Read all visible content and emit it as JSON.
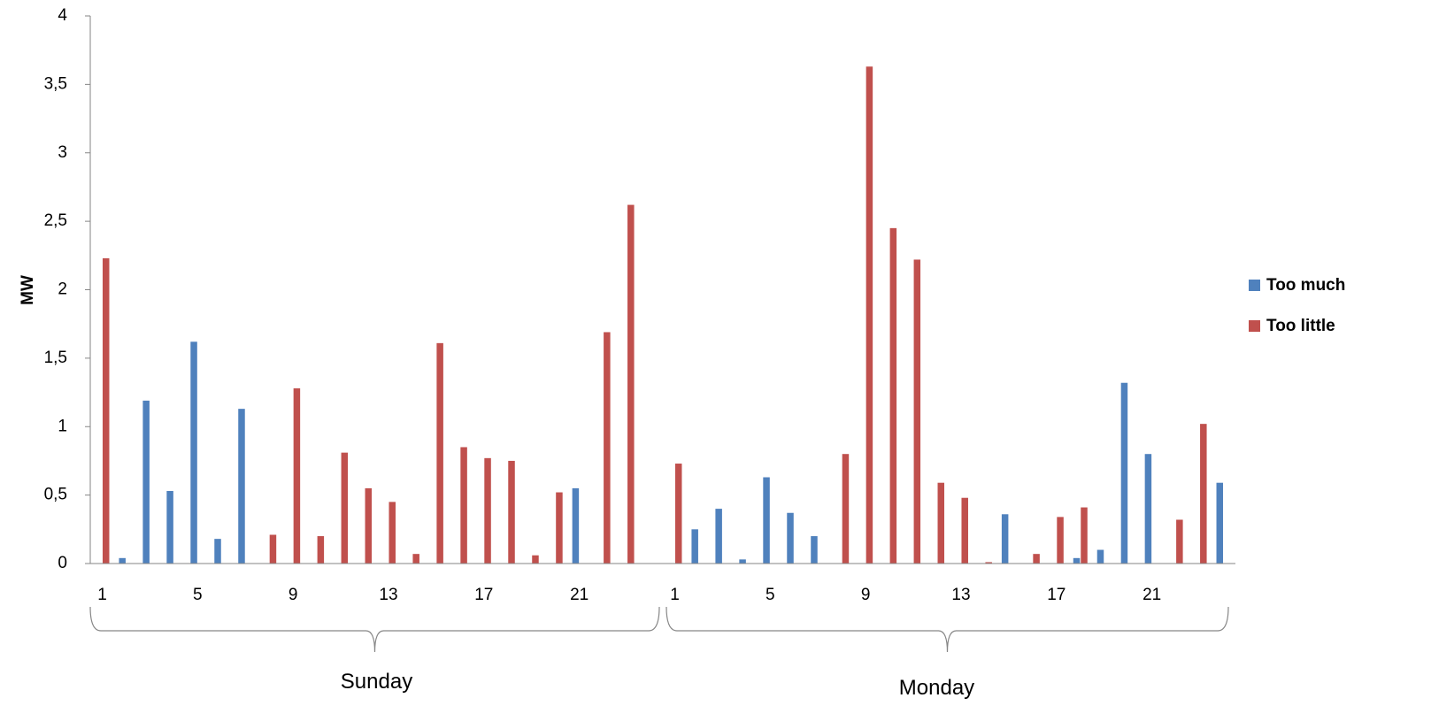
{
  "chart_data": {
    "type": "bar",
    "ylabel": "MW",
    "xlabel": "",
    "ylim": [
      0,
      4
    ],
    "yticks": [
      "0",
      "0,5",
      "1",
      "1,5",
      "2",
      "2,5",
      "3",
      "3,5",
      "4"
    ],
    "ytick_values": [
      0,
      0.5,
      1,
      1.5,
      2,
      2.5,
      3,
      3.5,
      4
    ],
    "xtick_labels": [
      "1",
      "5",
      "9",
      "13",
      "17",
      "21"
    ],
    "xtick_hours": [
      1,
      5,
      9,
      13,
      17,
      21
    ],
    "legend_position": "right",
    "groups": [
      {
        "label": "Sunday",
        "categories": [
          1,
          2,
          3,
          4,
          5,
          6,
          7,
          8,
          9,
          10,
          11,
          12,
          13,
          14,
          15,
          16,
          17,
          18,
          19,
          20,
          21,
          22,
          23,
          24
        ],
        "series": [
          {
            "name": "Too much",
            "color": "#4F81BD",
            "values": [
              0,
              0.04,
              1.19,
              0.53,
              1.62,
              0.18,
              1.13,
              0,
              0,
              0,
              0,
              0,
              0,
              0,
              0,
              0,
              0,
              0,
              0,
              0,
              0.55,
              0,
              0,
              0
            ]
          },
          {
            "name": "Too little",
            "color": "#C0504D",
            "values": [
              2.23,
              0,
              0,
              0,
              0,
              0,
              0,
              0.21,
              1.28,
              0.2,
              0.81,
              0.55,
              0.45,
              0.07,
              1.61,
              0.85,
              0.77,
              0.75,
              0.06,
              0.52,
              0,
              1.69,
              2.62,
              0
            ]
          }
        ]
      },
      {
        "label": "Monday",
        "categories": [
          1,
          2,
          3,
          4,
          5,
          6,
          7,
          8,
          9,
          10,
          11,
          12,
          13,
          14,
          15,
          16,
          17,
          18,
          19,
          20,
          21,
          22,
          23,
          24
        ],
        "series": [
          {
            "name": "Too much",
            "color": "#4F81BD",
            "values": [
              0,
              0.25,
              0.4,
              0.03,
              0.63,
              0.37,
              0.2,
              0,
              0,
              0,
              0,
              0,
              0,
              0,
              0.36,
              0,
              0,
              0.04,
              0.1,
              1.32,
              0.8,
              0,
              0,
              0.59
            ]
          },
          {
            "name": "Too little",
            "color": "#C0504D",
            "values": [
              0.73,
              0,
              0,
              0,
              0,
              0,
              0,
              0.8,
              3.63,
              2.45,
              2.22,
              0.59,
              0.48,
              0.01,
              0,
              0.07,
              0.34,
              0.41,
              0,
              0,
              0,
              0.32,
              1.02,
              0
            ]
          }
        ]
      }
    ],
    "legend": [
      {
        "name": "Too much",
        "color": "#4F81BD"
      },
      {
        "name": "Too little",
        "color": "#C0504D"
      }
    ]
  }
}
